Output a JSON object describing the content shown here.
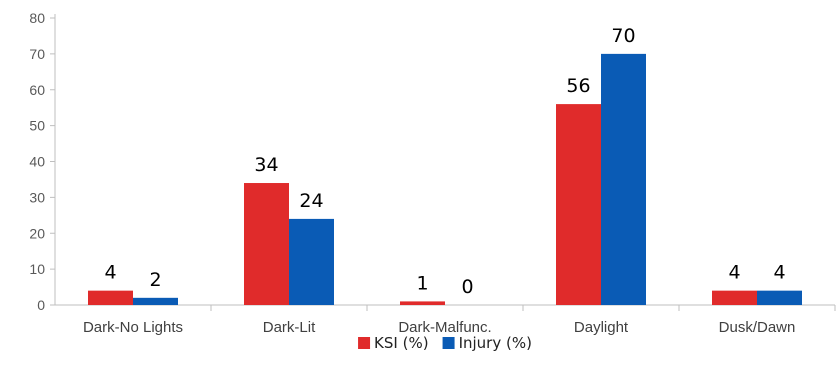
{
  "chart_data": {
    "type": "bar",
    "categories": [
      "Dark-No Lights",
      "Dark-Lit",
      "Dark-Malfunc.",
      "Daylight",
      "Dusk/Dawn"
    ],
    "series": [
      {
        "name": "KSI (%)",
        "values": [
          4,
          34,
          1,
          56,
          4
        ],
        "color": "#e02b2b"
      },
      {
        "name": "Injury (%)",
        "values": [
          2,
          24,
          0,
          70,
          4
        ],
        "color": "#0a5bb5"
      }
    ],
    "title": "",
    "xlabel": "",
    "ylabel": "",
    "ylim": [
      0,
      80
    ],
    "yticks": [
      0,
      10,
      20,
      30,
      40,
      50,
      60,
      70,
      80
    ],
    "grid": false,
    "legend": "bottom-center",
    "axis_color": "#bfbfbf"
  }
}
